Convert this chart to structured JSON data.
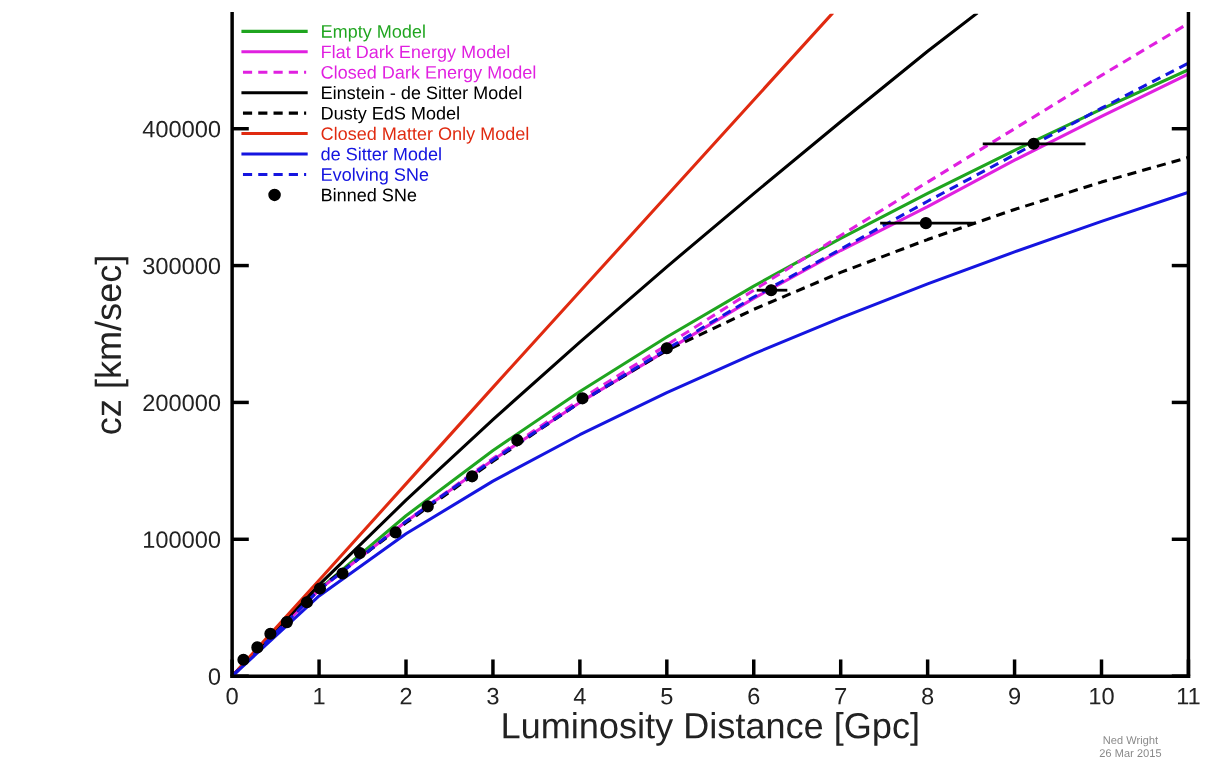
{
  "chart_data": {
    "type": "line",
    "xlabel": "Luminosity Distance [Gpc]",
    "ylabel": "cz [km/sec]",
    "xlim": [
      0,
      11
    ],
    "ylim": [
      0,
      484000
    ],
    "xticks": [
      0,
      1,
      2,
      3,
      4,
      5,
      6,
      7,
      8,
      9,
      10,
      11
    ],
    "yticks": [
      0,
      100000,
      200000,
      300000,
      400000
    ],
    "grid": false,
    "legend": "top left",
    "annotations": [
      "Ned Wright",
      "26 Mar 2015"
    ],
    "series": [
      {
        "name": "Empty Model",
        "color": "#1fa51f",
        "line_style": "solid",
        "x": [
          0,
          1,
          2,
          3,
          4,
          5,
          6,
          7,
          8,
          9,
          10,
          11
        ],
        "values": [
          0,
          63400,
          117200,
          164900,
          208000,
          247800,
          285000,
          319900,
          352800,
          384200,
          414300,
          443100
        ]
      },
      {
        "name": "Flat Dark Energy Model",
        "color": "#e020e0",
        "line_style": "solid",
        "x": [
          0,
          1,
          2,
          3,
          4,
          5,
          6,
          7,
          8,
          9,
          10,
          11
        ],
        "values": [
          0,
          63000,
          113000,
          158000,
          200000,
          238000,
          276000,
          311000,
          343000,
          377000,
          409000,
          440000
        ]
      },
      {
        "name": "Closed Dark Energy Model",
        "color": "#e020e0",
        "line_style": "dashed",
        "x": [
          0,
          1,
          2,
          3,
          4,
          5,
          6,
          7,
          8,
          9,
          10,
          11
        ],
        "values": [
          0,
          63000,
          113000,
          159000,
          202000,
          242000,
          282000,
          322000,
          361000,
          400000,
          439000,
          477000
        ]
      },
      {
        "name": "Einstein - de Sitter Model",
        "color": "#000000",
        "line_style": "solid",
        "x": [
          0,
          1,
          2,
          3,
          4,
          5,
          6,
          7,
          8,
          8.56
        ],
        "values": [
          0,
          66700,
          128600,
          187500,
          244100,
          299100,
          352600,
          405100,
          456600,
          484000
        ]
      },
      {
        "name": "Dusty EdS Model",
        "color": "#000000",
        "line_style": "dashed",
        "x": [
          0,
          1,
          2,
          3,
          4,
          5,
          6,
          7,
          8,
          9,
          10,
          11
        ],
        "values": [
          0,
          64000,
          112000,
          157000,
          200000,
          238000,
          268000,
          295000,
          319000,
          341000,
          361000,
          379000
        ]
      },
      {
        "name": "Closed Matter Only Model",
        "color": "#e02a10",
        "line_style": "solid",
        "x": [
          0,
          1,
          2,
          3,
          4,
          5,
          6,
          6.9
        ],
        "values": [
          0,
          70000,
          140500,
          211000,
          281000,
          351000,
          421000,
          484000
        ]
      },
      {
        "name": "de Sitter Model",
        "color": "#1515e0",
        "line_style": "solid",
        "x": [
          0,
          1,
          2,
          3,
          4,
          5,
          6,
          7,
          8,
          9,
          10,
          11
        ],
        "values": [
          0,
          58600,
          104000,
          142500,
          176400,
          207200,
          235500,
          261800,
          286600,
          310000,
          332300,
          353600
        ]
      },
      {
        "name": "Evolving SNe",
        "color": "#1515e0",
        "line_style": "dashed",
        "x": [
          0,
          1,
          2,
          3,
          4,
          5,
          6,
          7,
          8,
          9,
          10,
          11
        ],
        "values": [
          0,
          63000,
          113000,
          158000,
          200000,
          239000,
          277000,
          312000,
          347000,
          381000,
          415000,
          448000
        ]
      },
      {
        "name": "Binned SNe",
        "type": "scatter",
        "marker": "circle",
        "color": "#000000",
        "x": [
          0.13,
          0.29,
          0.44,
          0.63,
          0.86,
          1.01,
          1.27,
          1.47,
          1.88,
          2.25,
          2.76,
          3.28,
          4.03,
          5.0,
          6.2,
          7.98,
          9.22
        ],
        "values": [
          12000,
          21000,
          31000,
          39500,
          54000,
          64000,
          75000,
          90000,
          105000,
          124000,
          146000,
          172400,
          203000,
          239600,
          282000,
          331000,
          389000
        ],
        "xerrors": [
          null,
          null,
          null,
          null,
          null,
          null,
          null,
          null,
          null,
          null,
          null,
          null,
          null,
          null,
          [
            6.05,
            6.37
          ],
          [
            7.47,
            8.53
          ],
          [
            8.65,
            9.8
          ]
        ]
      }
    ]
  }
}
